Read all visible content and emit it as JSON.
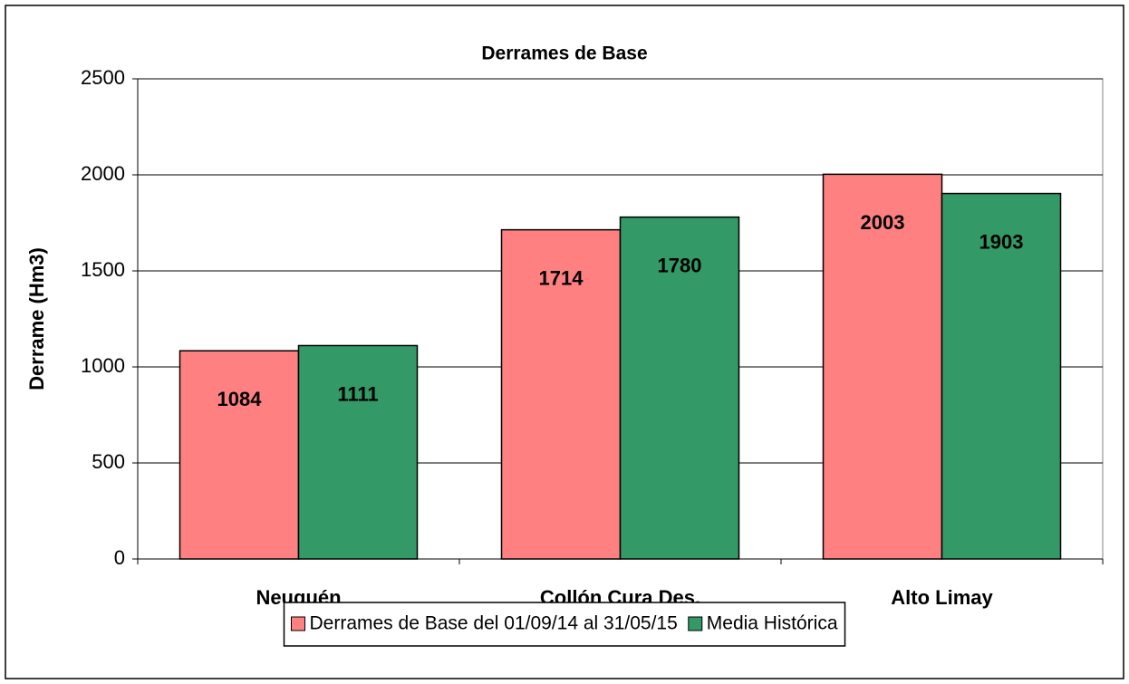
{
  "chart_data": {
    "type": "bar",
    "title": "Derrames de Base",
    "y_label": "Derrame (Hm3)",
    "categories": [
      "Neuquén",
      "Collón Cura Des.",
      "Alto Limay"
    ],
    "series": [
      {
        "name": "Derrames de Base del 01/09/14 al 31/05/15",
        "color": "#ff8080",
        "values": [
          1084,
          1714,
          2003
        ]
      },
      {
        "name": "Media Histórica",
        "color": "#339966",
        "values": [
          1111,
          1780,
          1903
        ]
      }
    ],
    "ylim": [
      0,
      2500
    ],
    "yticks": [
      0,
      500,
      1000,
      1500,
      2000,
      2500
    ],
    "grid": true,
    "legend": "bottom"
  }
}
